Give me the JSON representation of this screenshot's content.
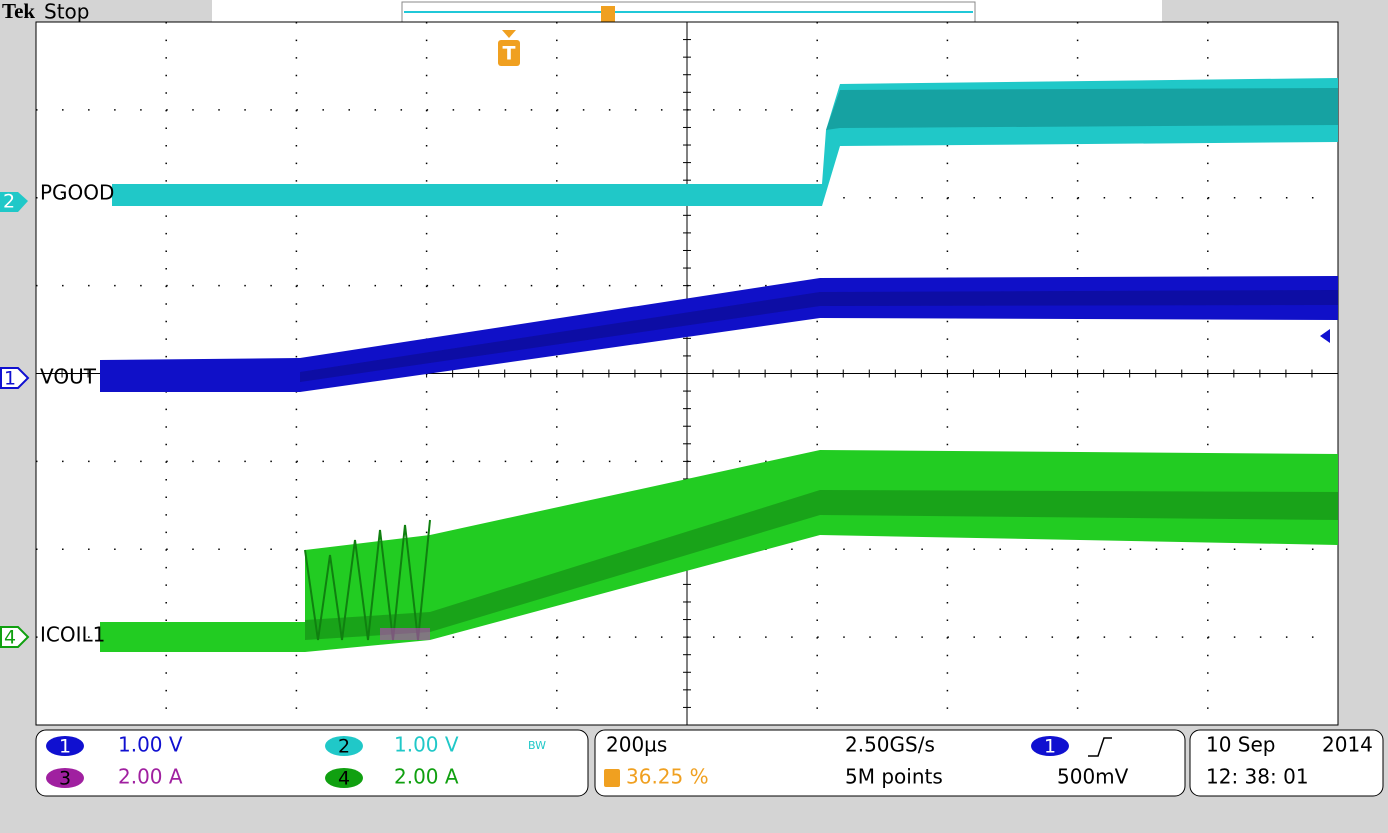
{
  "header": {
    "brand": "Tek",
    "status": "Stop"
  },
  "trigger_marker": "T",
  "channels": [
    {
      "number": "2",
      "label": "PGOOD"
    },
    {
      "number": "1",
      "label": "VOUT"
    },
    {
      "number": "4",
      "label": "ICOIL1"
    }
  ],
  "readouts": {
    "ch1": {
      "number": "1",
      "scale": "1.00 V"
    },
    "ch2": {
      "number": "2",
      "scale": "1.00 V",
      "bandwidth": "BW"
    },
    "ch3": {
      "number": "3",
      "scale": "2.00 A"
    },
    "ch4": {
      "number": "4",
      "scale": "2.00 A"
    },
    "horizontal": {
      "scale": "200µs",
      "sample_rate": "2.50GS/s",
      "trigger_position": "36.25 %",
      "record_length": "5M points"
    },
    "trigger": {
      "source": "1",
      "level": "500mV"
    },
    "date": {
      "day": "10 Sep",
      "year": "2014",
      "time": "12: 38: 01"
    }
  }
}
